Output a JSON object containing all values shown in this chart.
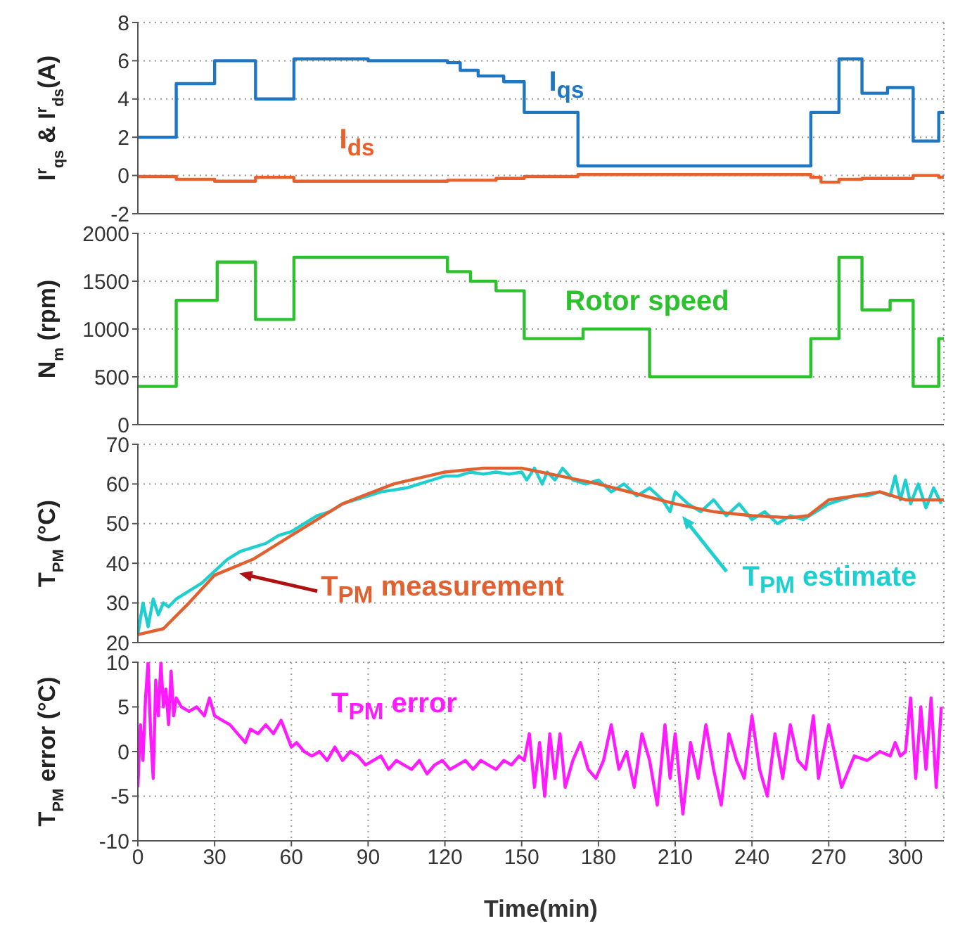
{
  "chart_data": [
    {
      "type": "step",
      "ylabel": "I$^{r}$$_{qs}$ & I$^{r}$$_{ds}$(A)",
      "xlim": [
        0,
        315
      ],
      "xticks": [
        0,
        30,
        60,
        90,
        120,
        150,
        180,
        210,
        240,
        270,
        300
      ],
      "ylim": [
        -2,
        8
      ],
      "yticks": [
        -2,
        0,
        2,
        4,
        6,
        8
      ],
      "grid": true,
      "legend": false,
      "tick_labels": "y",
      "marker": "none",
      "series": [
        {
          "name": "I$_{qs}$",
          "color": "#1f77c4",
          "x": [
            0,
            15,
            30,
            46,
            61,
            90,
            121,
            126,
            133,
            143,
            151,
            172,
            263,
            274,
            283,
            293,
            303,
            313,
            315
          ],
          "values": [
            2,
            4.8,
            6,
            4,
            6.1,
            6,
            5.9,
            5.5,
            5.2,
            4.9,
            3.3,
            0.5,
            3.3,
            6.1,
            4.3,
            4.6,
            1.8,
            3.3,
            3.3
          ]
        },
        {
          "name": "I$_{ds}$",
          "color": "#e8602c",
          "x": [
            0,
            15,
            30,
            46,
            61,
            90,
            121,
            140,
            151,
            172,
            263,
            267,
            274,
            283,
            293,
            303,
            313,
            315
          ],
          "values": [
            -0.05,
            -0.2,
            -0.3,
            -0.1,
            -0.3,
            -0.3,
            -0.25,
            -0.15,
            -0.05,
            0.05,
            -0.1,
            -0.35,
            -0.2,
            -0.15,
            -0.15,
            0,
            -0.1,
            -0.1
          ]
        }
      ]
    },
    {
      "type": "step",
      "ylabel": "N$_{m}$ (rpm)",
      "xlim": [
        0,
        315
      ],
      "xticks": [
        0,
        30,
        60,
        90,
        120,
        150,
        180,
        210,
        240,
        270,
        300
      ],
      "ylim": [
        0,
        2000
      ],
      "yticks": [
        0,
        500,
        1000,
        1500,
        2000
      ],
      "grid": true,
      "legend": false,
      "tick_labels": "y",
      "marker": "none",
      "series": [
        {
          "name": "Rotor speed",
          "color": "#2ec12e",
          "x": [
            0,
            15,
            31,
            46,
            61,
            121,
            130,
            140,
            151,
            174,
            200,
            263,
            274,
            283,
            294,
            303,
            313,
            315
          ],
          "values": [
            400,
            1300,
            1700,
            1100,
            1750,
            1600,
            1500,
            1400,
            900,
            1000,
            500,
            900,
            1750,
            1200,
            1300,
            400,
            900,
            900
          ]
        }
      ]
    },
    {
      "type": "line",
      "ylabel": "T$_{PM}$ (°C)",
      "xlim": [
        0,
        315
      ],
      "xticks": [
        0,
        30,
        60,
        90,
        120,
        150,
        180,
        210,
        240,
        270,
        300
      ],
      "ylim": [
        20,
        70
      ],
      "yticks": [
        20,
        30,
        40,
        50,
        60,
        70
      ],
      "grid": true,
      "legend": false,
      "tick_labels": "y",
      "marker": "none",
      "series": [
        {
          "name": "T$_{PM}$ estimate",
          "color": "#1fcfcf",
          "x": [
            0,
            2,
            4,
            6,
            8,
            10,
            12,
            15,
            20,
            25,
            30,
            35,
            40,
            45,
            50,
            55,
            60,
            65,
            70,
            75,
            80,
            85,
            90,
            95,
            100,
            105,
            110,
            115,
            120,
            125,
            130,
            135,
            140,
            145,
            150,
            152,
            155,
            158,
            160,
            163,
            166,
            170,
            175,
            180,
            185,
            190,
            195,
            200,
            205,
            208,
            210,
            215,
            220,
            225,
            230,
            235,
            240,
            245,
            250,
            255,
            260,
            265,
            270,
            275,
            280,
            285,
            290,
            294,
            296,
            298,
            300,
            302,
            305,
            308,
            311,
            314
          ],
          "values": [
            22,
            30,
            24,
            31,
            27,
            30,
            29,
            31,
            33,
            35,
            38,
            41,
            43,
            44,
            45,
            47,
            48,
            50,
            52,
            53,
            55,
            56,
            57,
            58,
            58.5,
            59,
            60,
            61,
            62,
            62,
            63,
            62.5,
            63,
            62.5,
            63,
            61,
            64,
            60,
            63,
            61,
            64,
            61,
            60,
            61,
            58,
            60,
            57,
            59,
            56,
            53,
            58,
            55,
            53,
            56,
            52,
            55,
            51,
            53,
            50,
            52,
            51,
            53,
            55,
            56,
            57,
            57,
            58,
            57,
            62,
            56,
            61,
            55,
            60,
            54,
            59,
            55
          ]
        },
        {
          "name": "T$_{PM}$ measurement",
          "color": "#e06030",
          "x": [
            0,
            10,
            20,
            30,
            45,
            60,
            80,
            100,
            120,
            135,
            150,
            165,
            180,
            195,
            210,
            225,
            240,
            255,
            262,
            270,
            280,
            290,
            300,
            315
          ],
          "values": [
            22,
            23.5,
            30,
            37,
            41,
            47,
            55,
            60,
            63,
            64,
            64,
            62,
            60,
            57.5,
            55,
            53,
            52,
            51.5,
            52,
            56,
            57,
            58,
            56,
            56
          ]
        }
      ]
    },
    {
      "type": "line",
      "ylabel": "T$_{PM}$ error (°C)",
      "xlabel": "Time(min)",
      "xlim": [
        0,
        315
      ],
      "xticks": [
        0,
        30,
        60,
        90,
        120,
        150,
        180,
        210,
        240,
        270,
        300
      ],
      "ylim": [
        -10,
        10
      ],
      "yticks": [
        -10,
        -5,
        0,
        5,
        10
      ],
      "grid": true,
      "legend": false,
      "marker": "none",
      "series": [
        {
          "name": "T$_{PM}$ error",
          "color": "#ff1aff",
          "x": [
            0,
            1,
            2,
            3,
            4,
            5,
            6,
            7,
            8,
            9,
            10,
            11,
            12,
            13,
            14,
            15,
            17,
            20,
            23,
            26,
            28,
            30,
            33,
            36,
            39,
            42,
            44,
            47,
            50,
            53,
            56,
            58,
            60,
            62,
            65,
            68,
            71,
            74,
            77,
            80,
            83,
            86,
            89,
            92,
            95,
            98,
            101,
            104,
            107,
            110,
            113,
            116,
            119,
            122,
            125,
            128,
            131,
            134,
            137,
            140,
            143,
            146,
            149,
            151,
            153,
            155,
            157,
            159,
            161,
            163,
            165,
            167,
            170,
            173,
            176,
            179,
            182,
            185,
            188,
            191,
            194,
            197,
            200,
            203,
            206,
            208,
            210,
            213,
            216,
            219,
            222,
            225,
            228,
            231,
            234,
            237,
            240,
            243,
            246,
            249,
            252,
            255,
            258,
            261,
            264,
            266,
            270,
            275,
            280,
            285,
            290,
            294,
            296,
            298,
            300,
            302,
            304,
            306,
            308,
            310,
            312,
            314
          ],
          "values": [
            -4,
            3,
            -1,
            6,
            10,
            2,
            -3,
            8,
            4,
            10,
            5,
            7,
            3,
            9,
            4,
            6,
            5,
            4.5,
            5,
            4,
            6,
            4,
            3.5,
            3,
            2,
            1,
            2.5,
            2,
            3,
            2,
            3.5,
            2,
            0.5,
            1,
            0,
            -0.5,
            0,
            -1,
            0.5,
            -1,
            0,
            -0.5,
            -1.5,
            -1,
            -0.5,
            -2,
            -1,
            -1.5,
            -2,
            -1,
            -2.5,
            -1.5,
            -1,
            -2,
            -1.5,
            -1,
            -2,
            -1,
            -1.5,
            -2,
            -1,
            -1.5,
            -0.5,
            -1,
            2,
            -4,
            1,
            -5,
            2,
            -3,
            2,
            -4,
            -1,
            1,
            -2,
            -3,
            -1,
            3,
            -2,
            0,
            -4,
            2,
            -1,
            -6,
            3,
            -3,
            2,
            -7,
            1,
            -3,
            3,
            -2,
            -6,
            2,
            -1,
            -3,
            4,
            -2,
            -5,
            2,
            -3,
            3,
            -1,
            -2,
            4,
            -3,
            3,
            -4,
            -0.5,
            -1,
            0,
            -0.5,
            1,
            -0.5,
            0,
            6,
            -3,
            5,
            -2,
            6,
            -4,
            5
          ]
        }
      ]
    }
  ]
}
